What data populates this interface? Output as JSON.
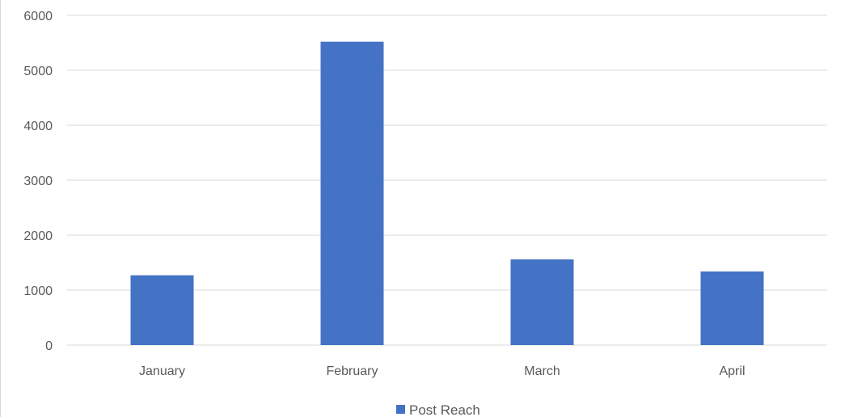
{
  "chart_data": {
    "type": "bar",
    "title": "",
    "xlabel": "",
    "ylabel": "",
    "categories": [
      "January",
      "February",
      "March",
      "April"
    ],
    "series": [
      {
        "name": "Post Reach",
        "values": [
          1270,
          5520,
          1560,
          1340
        ],
        "color": "#4472c4"
      }
    ],
    "ylim": [
      0,
      6000
    ],
    "yticks": [
      0,
      1000,
      2000,
      3000,
      4000,
      5000,
      6000
    ],
    "ytick_labels": [
      "0",
      "1000",
      "2000",
      "3000",
      "4000",
      "5000",
      "6000"
    ],
    "grid": true,
    "legend_position": "bottom"
  }
}
